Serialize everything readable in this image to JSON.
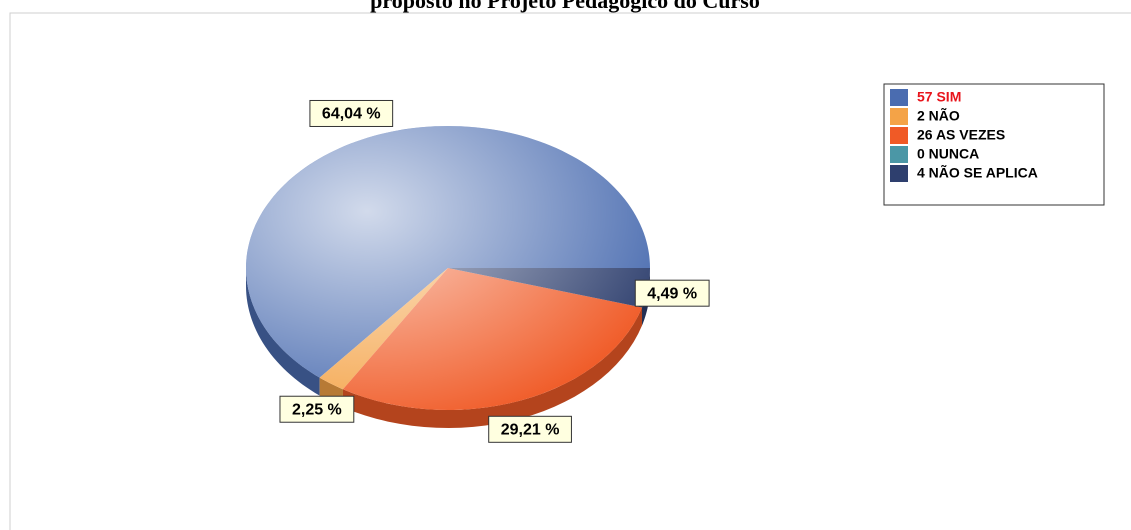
{
  "chart_data": {
    "type": "pie",
    "title": "proposto no Projeto Pedagógico do Curso",
    "categories": [
      "57 SIM",
      "2 NÃO",
      "26 AS VEZES",
      "0 NUNCA",
      "4 NÃO SE APLICA"
    ],
    "values": [
      64.04,
      2.25,
      29.21,
      0,
      4.49
    ],
    "value_labels": [
      "64,04 %",
      "2,25 %",
      "29,21 %",
      null,
      "4,49 %"
    ],
    "colors": [
      "#4a6cb0",
      "#f4a347",
      "#f05a26",
      "#4b97a6",
      "#2e3f6e"
    ],
    "legend": "top-right"
  }
}
